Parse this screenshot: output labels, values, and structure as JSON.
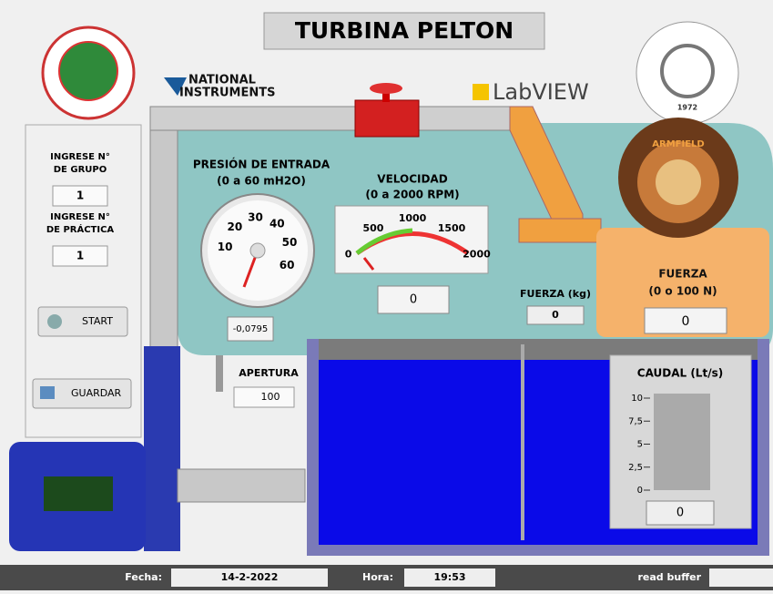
{
  "title": "TURBINA PELTON",
  "logos": {
    "ni": [
      "NATIONAL",
      "INSTRUMENTS"
    ],
    "labview": "LabVIEW",
    "armfield": "ARMFIELD",
    "espoch_year": "1972"
  },
  "sidebar": {
    "group_label": [
      "INGRESE N°",
      "DE GRUPO"
    ],
    "group_value": "1",
    "practice_label": [
      "INGRESE N°",
      "DE PRÁCTICA"
    ],
    "practice_value": "1",
    "start": "START",
    "save": "GUARDAR"
  },
  "pressure": {
    "title": "PRESIÓN DE ENTRADA",
    "range": "(0 a 60 mH2O)",
    "ticks": [
      "10",
      "20",
      "30",
      "40",
      "50",
      "60"
    ],
    "value": "-0,0795"
  },
  "velocity": {
    "title": "VELOCIDAD",
    "range": "(0 a 2000 RPM)",
    "ticks": [
      "0",
      "500",
      "1000",
      "1500",
      "2000"
    ],
    "value": "0"
  },
  "force_kg": {
    "label": "FUERZA (kg)",
    "value": "0"
  },
  "force": {
    "title": "FUERZA",
    "range": "(0 o 100 N)",
    "value": "0"
  },
  "opening": {
    "label": "APERTURA",
    "value": "100"
  },
  "flow": {
    "title": "CAUDAL (Lt/s)",
    "ticks": [
      "10",
      "7,5",
      "5",
      "2,5",
      "0"
    ],
    "value": "0"
  },
  "status": {
    "date_label": "Fecha:",
    "date": "14-2-2022",
    "time_label": "Hora:",
    "time": "19:53",
    "buffer_label": "read buffer"
  }
}
